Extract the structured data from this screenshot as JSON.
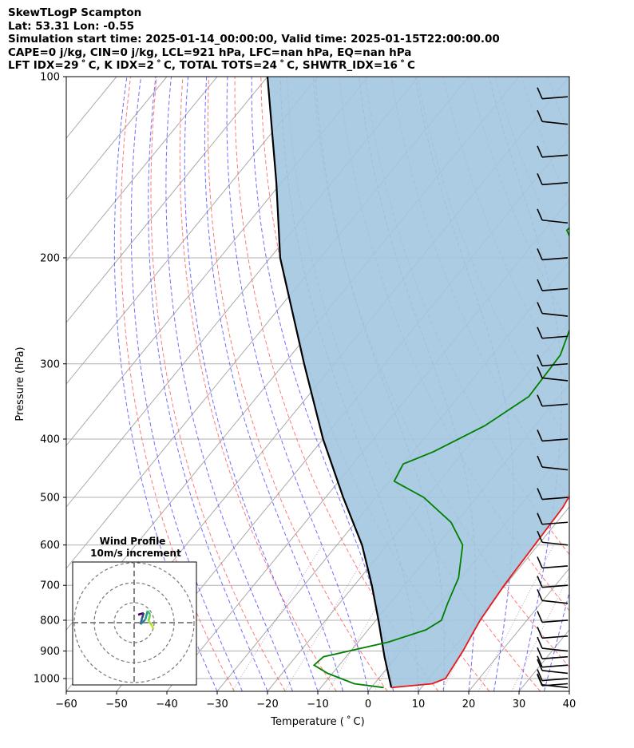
{
  "header": {
    "line1": "SkewTLogP Scampton",
    "line2": "Lat: 53.31   Lon: -0.55",
    "line3": "Simulation start time: 2025-01-14_00:00:00, Valid time: 2025-01-15T22:00:00.00",
    "line4": "CAPE=0 j/kg, CIN=0 j/kg, LCL=921 hPa, LFC=nan hPa, EQ=nan hPa",
    "line5": "LFT IDX=29 ˚ C, K IDX=2 ˚ C, TOTAL TOTS=24 ˚ C, SHWTR_IDX=16 ˚ C"
  },
  "colors": {
    "temperature": "#e41a1c",
    "dewpoint": "#008000",
    "parcel": "#000000",
    "cape_fill": "#a3c6e0",
    "dry_adiabat": "#ff6a6a",
    "moist_adiabat": "#5555ff",
    "isotherm": "#aaaaaa",
    "grid": "#b0b0b0"
  },
  "chart_data": [
    {
      "type": "line",
      "subtype": "skew-t log-p",
      "xlabel": "Temperature ( ˚ C)",
      "ylabel": "Pressure (hPa)",
      "xlim": [
        -60,
        40
      ],
      "ylim": [
        1050,
        100
      ],
      "y_scale": "log",
      "x_ticks": [
        "−60",
        "−50",
        "−40",
        "−30",
        "−20",
        "−10",
        "0",
        "10",
        "20",
        "30",
        "40"
      ],
      "y_ticks": [
        "100",
        "200",
        "300",
        "400",
        "500",
        "600",
        "700",
        "800",
        "900",
        "1000"
      ],
      "grid": true,
      "series": [
        {
          "role": "temperature",
          "points": [
            {
              "p": 1035,
              "t": 4.0
            },
            {
              "p": 1020,
              "t": 11.5
            },
            {
              "p": 1000,
              "t": 13.3
            },
            {
              "p": 950,
              "t": 12.8
            },
            {
              "p": 900,
              "t": 12.3
            },
            {
              "p": 850,
              "t": 11.5
            },
            {
              "p": 800,
              "t": 10.7
            },
            {
              "p": 700,
              "t": 9.8
            },
            {
              "p": 600,
              "t": 9.3
            },
            {
              "p": 520,
              "t": 8.8
            },
            {
              "p": 480,
              "t": 7.8
            },
            {
              "p": 420,
              "t": 3.0
            },
            {
              "p": 300,
              "t": -7.0
            },
            {
              "p": 250,
              "t": -11.5
            },
            {
              "p": 210,
              "t": -15.5
            },
            {
              "p": 200,
              "t": -14.0
            },
            {
              "p": 180,
              "t": -11.5
            },
            {
              "p": 160,
              "t": -9.0
            },
            {
              "p": 140,
              "t": -2.0
            },
            {
              "p": 130,
              "t": 1.5
            },
            {
              "p": 100,
              "t": 7.5
            }
          ]
        },
        {
          "role": "dewpoint",
          "points": [
            {
              "p": 1035,
              "t": 2.5
            },
            {
              "p": 1020,
              "t": -4.0
            },
            {
              "p": 980,
              "t": -11.0
            },
            {
              "p": 950,
              "t": -15.0
            },
            {
              "p": 920,
              "t": -14.5
            },
            {
              "p": 870,
              "t": -4.0
            },
            {
              "p": 830,
              "t": 1.5
            },
            {
              "p": 800,
              "t": 3.0
            },
            {
              "p": 750,
              "t": 1.5
            },
            {
              "p": 680,
              "t": -0.5
            },
            {
              "p": 600,
              "t": -5.0
            },
            {
              "p": 550,
              "t": -11.0
            },
            {
              "p": 500,
              "t": -20.5
            },
            {
              "p": 470,
              "t": -29.0
            },
            {
              "p": 440,
              "t": -30.0
            },
            {
              "p": 420,
              "t": -26.0
            },
            {
              "p": 380,
              "t": -20.0
            },
            {
              "p": 340,
              "t": -16.0
            },
            {
              "p": 290,
              "t": -16.5
            },
            {
              "p": 250,
              "t": -20.0
            },
            {
              "p": 200,
              "t": -28.5
            },
            {
              "p": 180,
              "t": -35.5
            },
            {
              "p": 165,
              "t": -34.5
            },
            {
              "p": 140,
              "t": -25.0
            },
            {
              "p": 125,
              "t": -28.0
            },
            {
              "p": 115,
              "t": -30.0
            },
            {
              "p": 100,
              "t": -24.0
            }
          ]
        },
        {
          "role": "parcel",
          "points": [
            {
              "p": 1035,
              "t": 4.0
            },
            {
              "p": 921,
              "t": -2.3
            },
            {
              "p": 800,
              "t": -9.5
            },
            {
              "p": 700,
              "t": -16.5
            },
            {
              "p": 600,
              "t": -25.0
            },
            {
              "p": 500,
              "t": -36.5
            },
            {
              "p": 400,
              "t": -50.0
            },
            {
              "p": 300,
              "t": -66.0
            },
            {
              "p": 200,
              "t": -88.0
            },
            {
              "p": 150,
              "t": -101.0
            },
            {
              "p": 100,
              "t": -120.0
            }
          ]
        }
      ],
      "wind_barbs_pressures": [
        1035,
        1020,
        1000,
        980,
        950,
        920,
        900,
        850,
        800,
        750,
        700,
        650,
        600,
        550,
        500,
        450,
        400,
        350,
        320,
        300,
        270,
        250,
        225,
        200,
        175,
        150,
        135,
        120,
        108
      ]
    },
    {
      "type": "scatter",
      "subtype": "hodograph",
      "title": "Wind Profile",
      "subtitle": "10m/s increment",
      "ring_increment": 10,
      "rings": [
        10,
        20,
        30
      ]
    }
  ]
}
